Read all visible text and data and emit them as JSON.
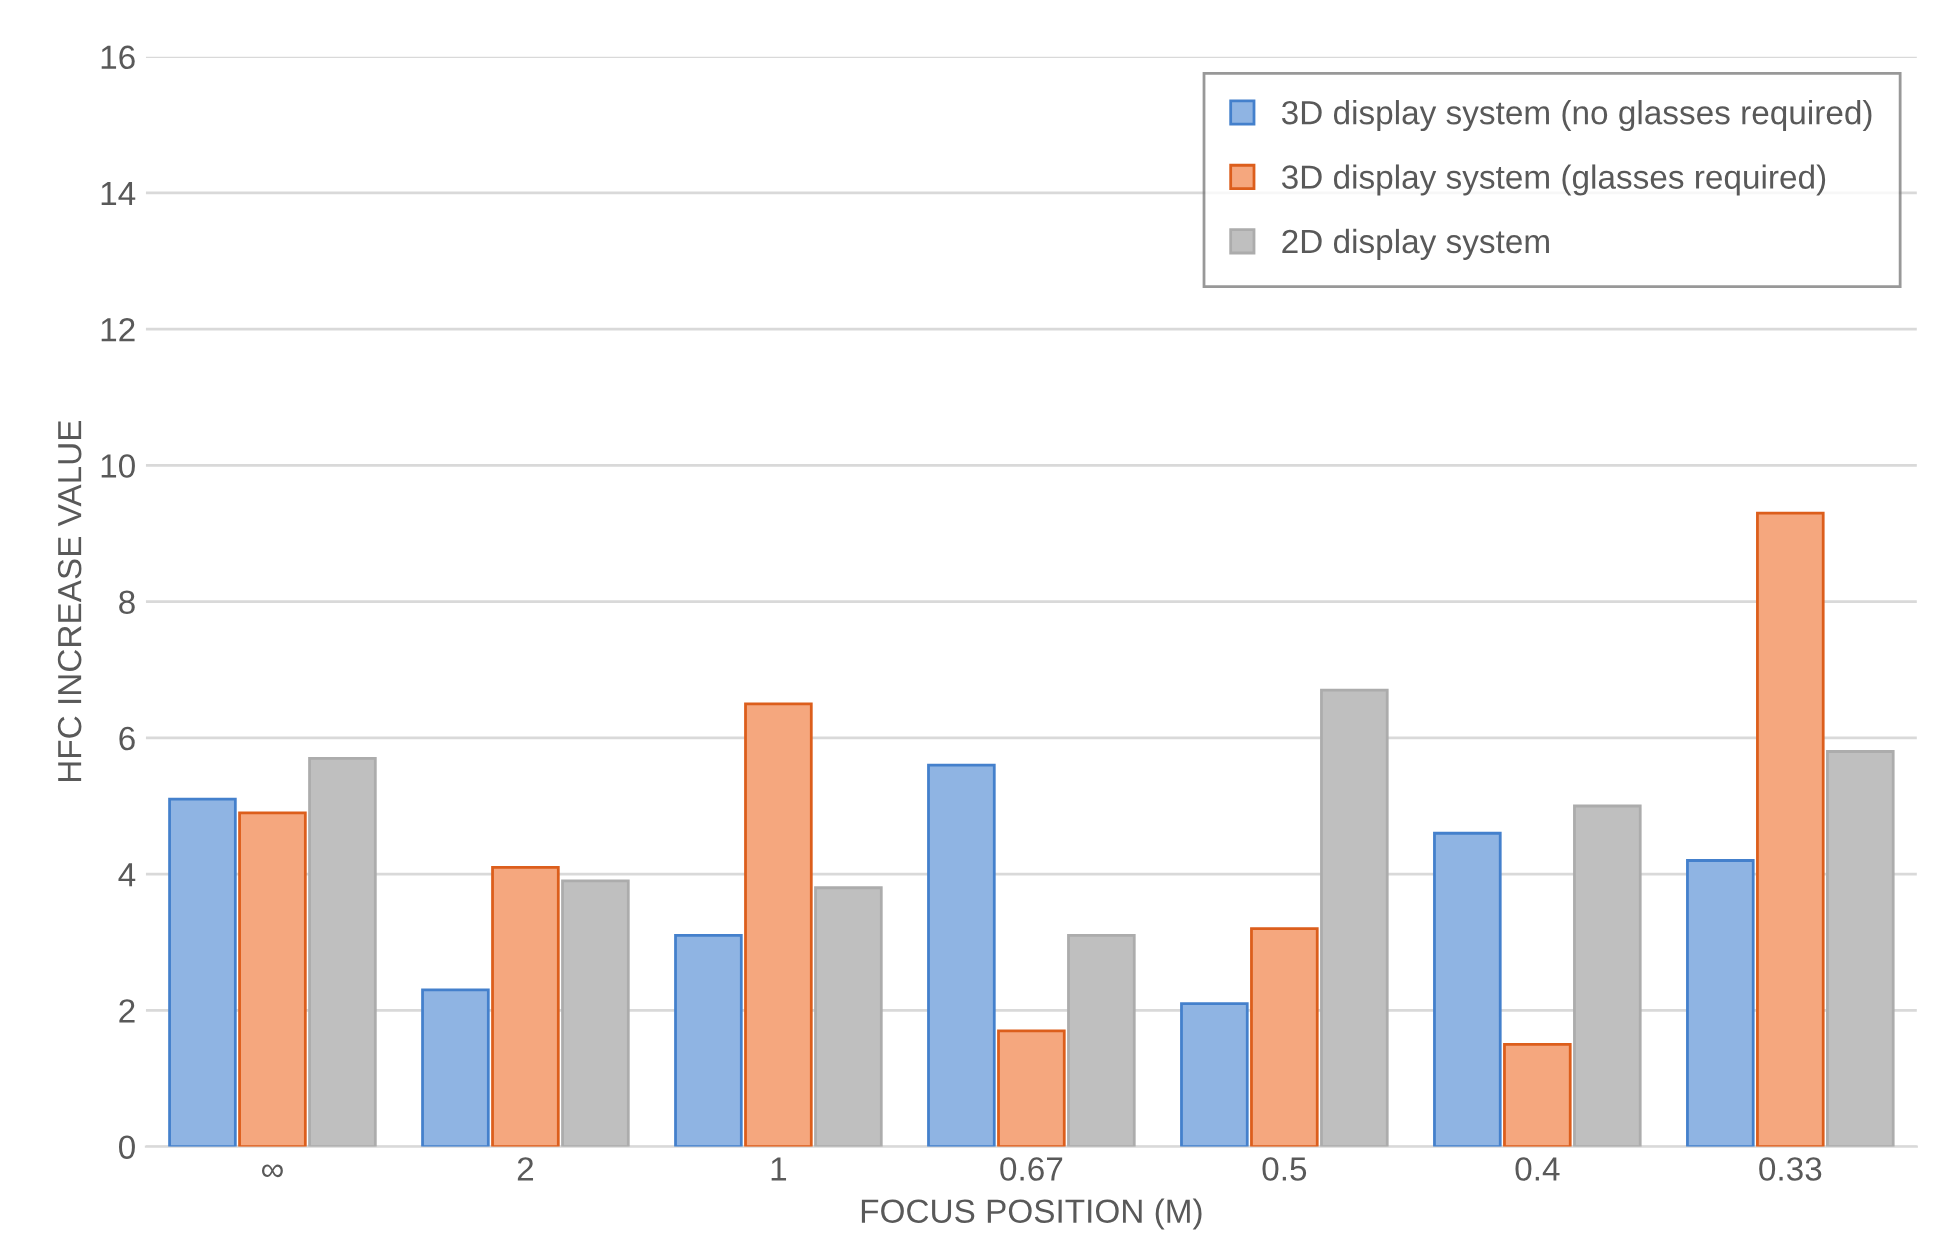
{
  "chart_data": {
    "type": "bar",
    "xlabel": "FOCUS POSITION (M)",
    "ylabel": "HFC INCREASE VALUE",
    "categories": [
      "∞",
      "2",
      "1",
      "0.67",
      "0.5",
      "0.4",
      "0.33"
    ],
    "series": [
      {
        "name": "3D display system (no glasses required)",
        "color": "#8fb4e3",
        "values": [
          5.1,
          2.3,
          3.1,
          5.6,
          2.1,
          4.6,
          4.2
        ]
      },
      {
        "name": "3D display system (glasses required)",
        "color": "#f5a77e",
        "values": [
          4.9,
          4.1,
          6.5,
          1.7,
          3.2,
          1.5,
          9.3
        ]
      },
      {
        "name": "2D display system",
        "color": "#bfbfbf",
        "values": [
          5.7,
          3.9,
          3.8,
          3.1,
          6.7,
          5.0,
          5.8
        ]
      }
    ],
    "ylim": [
      0,
      16
    ],
    "yticks": [
      0,
      2,
      4,
      6,
      8,
      10,
      12,
      14,
      16
    ],
    "grid": "y",
    "legend": "top right"
  }
}
